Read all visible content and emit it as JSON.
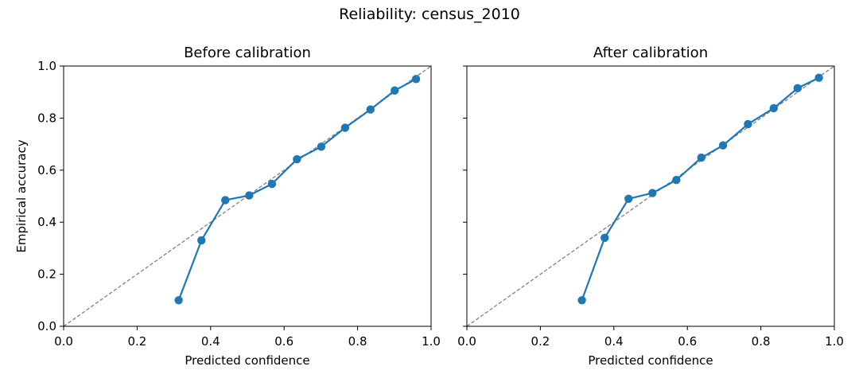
{
  "figure": {
    "title": "Reliability: census_2010"
  },
  "colors": {
    "series": "#1f77b4",
    "diagonal": "#808080",
    "axes": "#000000"
  },
  "chart_data": [
    {
      "type": "line",
      "title": "Before calibration",
      "xlabel": "Predicted confidence",
      "ylabel": "Empirical accuracy",
      "xlim": [
        0.0,
        1.0
      ],
      "ylim": [
        0.0,
        1.0
      ],
      "xticks": [
        "0.0",
        "0.2",
        "0.4",
        "0.6",
        "0.8",
        "1.0"
      ],
      "yticks": [
        "0.0",
        "0.2",
        "0.4",
        "0.6",
        "0.8",
        "1.0"
      ],
      "show_yticklabels": true,
      "grid": false,
      "reference_line": {
        "style": "dashed",
        "from": [
          0.0,
          0.0
        ],
        "to": [
          1.0,
          1.0
        ]
      },
      "series": [
        {
          "marker": "circle",
          "x": [
            0.313,
            0.375,
            0.44,
            0.505,
            0.567,
            0.635,
            0.701,
            0.766,
            0.835,
            0.901,
            0.959
          ],
          "y": [
            0.1,
            0.33,
            0.485,
            0.503,
            0.547,
            0.642,
            0.69,
            0.763,
            0.833,
            0.906,
            0.95
          ]
        }
      ]
    },
    {
      "type": "line",
      "title": "After calibration",
      "xlabel": "Predicted confidence",
      "ylabel": "",
      "xlim": [
        0.0,
        1.0
      ],
      "ylim": [
        0.0,
        1.0
      ],
      "xticks": [
        "0.0",
        "0.2",
        "0.4",
        "0.6",
        "0.8",
        "1.0"
      ],
      "yticks": [
        "0.0",
        "0.2",
        "0.4",
        "0.6",
        "0.8",
        "1.0"
      ],
      "show_yticklabels": false,
      "grid": false,
      "reference_line": {
        "style": "dashed",
        "from": [
          0.0,
          0.0
        ],
        "to": [
          1.0,
          1.0
        ]
      },
      "series": [
        {
          "marker": "circle",
          "x": [
            0.313,
            0.375,
            0.44,
            0.505,
            0.57,
            0.638,
            0.697,
            0.765,
            0.835,
            0.9,
            0.958
          ],
          "y": [
            0.1,
            0.34,
            0.49,
            0.512,
            0.562,
            0.648,
            0.695,
            0.777,
            0.838,
            0.915,
            0.955
          ]
        }
      ]
    }
  ]
}
